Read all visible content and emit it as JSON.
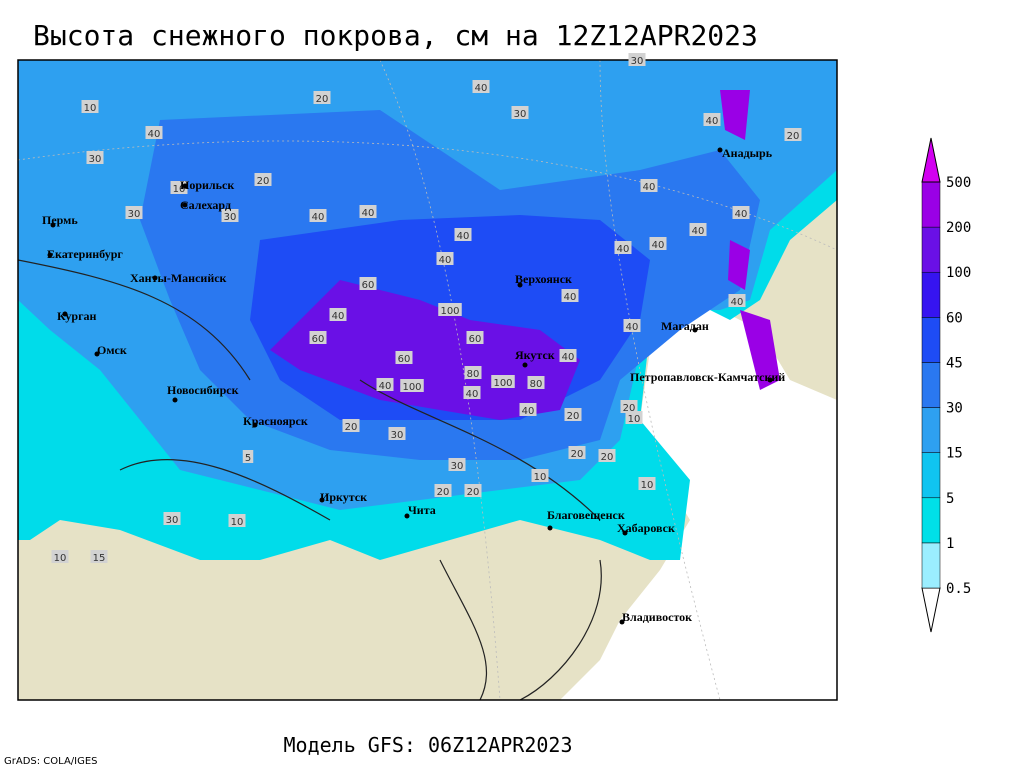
{
  "title": "Высота снежного покрова, см на 12Z12APR2023",
  "footer": "Модель GFS: 06Z12APR2023",
  "credit": "GrADS: COLA/IGES",
  "cities": [
    "Норильск",
    "Салехард",
    "Пермь",
    "Екатеринбург",
    "Ханты-Мансийск",
    "Курган",
    "Омск",
    "Новосибирск",
    "Красноярск",
    "Иркутск",
    "Чита",
    "Верхоянск",
    "Якутск",
    "Магадан",
    "Анадырь",
    "Петропавловск-Камчатский",
    "Благовещенск",
    "Хабаровск",
    "Владивосток"
  ],
  "contour_labels": [
    40,
    30,
    20,
    10,
    40,
    30,
    30,
    40,
    20,
    40,
    40,
    40,
    40,
    60,
    40,
    100,
    60,
    60,
    60,
    40,
    100,
    80,
    100,
    80,
    40,
    40,
    40,
    20,
    20,
    10,
    30,
    20,
    5,
    10,
    30,
    20,
    20,
    10,
    30,
    40,
    40,
    40,
    40,
    40,
    40,
    40,
    40,
    20,
    20,
    10,
    10,
    15,
    20,
    10,
    30,
    30
  ],
  "legend": {
    "levels": [
      0.5,
      1,
      5,
      15,
      30,
      45,
      60,
      100,
      200,
      500
    ],
    "colors": [
      "#ffffff",
      "#9beeff",
      "#00e0e8",
      "#10c4f0",
      "#2ea0f0",
      "#2a78f0",
      "#1e4cf5",
      "#3614f0",
      "#6a10e6",
      "#9a00e6",
      "#d200f0"
    ]
  }
}
